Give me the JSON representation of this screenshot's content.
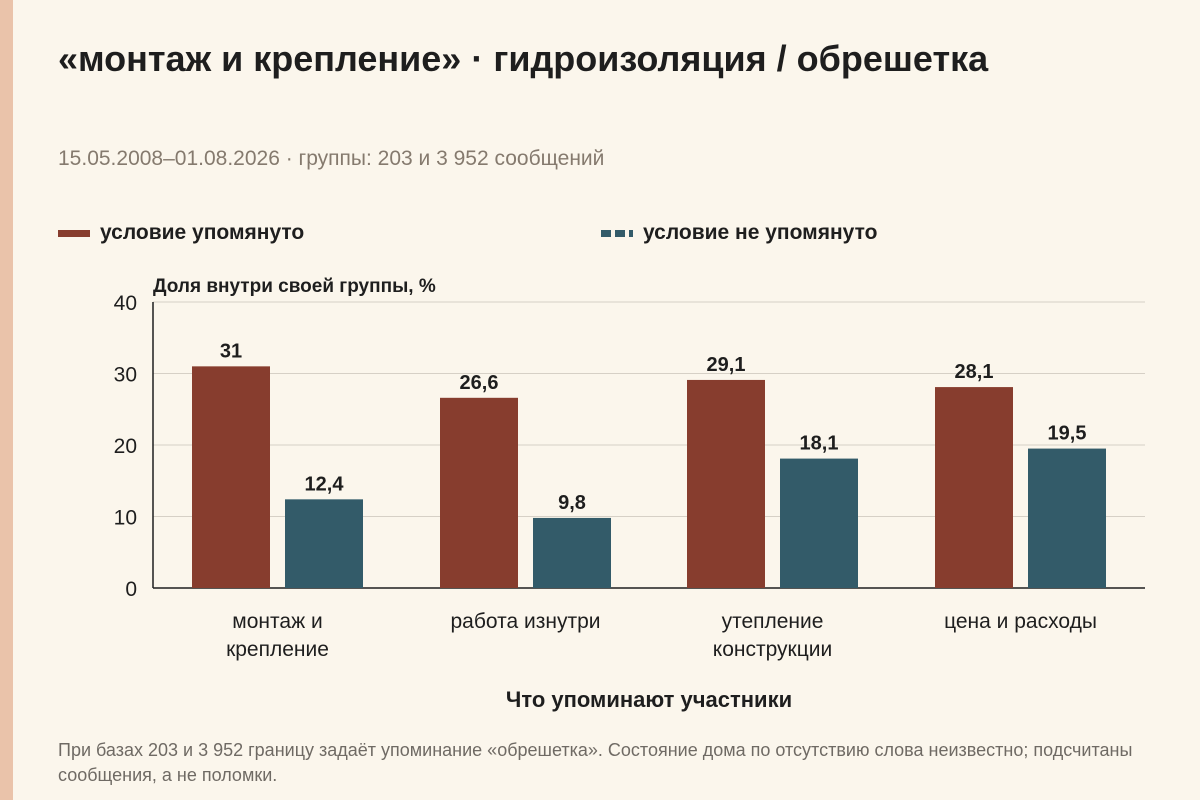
{
  "title": "«монтаж и крепление» · гидроизоляция / обрешетка",
  "subtitle": "15.05.2008–01.08.2026 · группы: 203 и 3 952 сообщений",
  "footnote": "При базах 203 и 3 952 границу задаёт упоминание «обрешетка». Состояние дома по отсутствию слова неизвестно; подсчитаны сообщения, а не поломки.",
  "colors": {
    "mentioned": "#873D2E",
    "not_mentioned": "#335B69",
    "grid": "#D6D0C6",
    "axis": "#1E1E1E",
    "accent": "#EAC3AA"
  },
  "chart_data": {
    "type": "bar",
    "title": "«монтаж и крепление» · гидроизоляция / обрешетка",
    "subtitle": "15.05.2008–01.08.2026 · группы: 203 и 3 952 сообщений",
    "xlabel": "Что упоминают участники",
    "ylabel": "Доля внутри своей группы, %",
    "ylim": [
      0,
      40
    ],
    "yticks": [
      0,
      10,
      20,
      30,
      40
    ],
    "categories": [
      [
        "монтаж и",
        "крепление"
      ],
      [
        "работа изнутри"
      ],
      [
        "утепление",
        "конструкции"
      ],
      [
        "цена и расходы"
      ]
    ],
    "series": [
      {
        "name": "условие упомянуто",
        "values": [
          31,
          26.6,
          29.1,
          28.1
        ],
        "labels": [
          "31",
          "26,6",
          "29,1",
          "28,1"
        ]
      },
      {
        "name": "условие не упомянуто",
        "values": [
          12.4,
          9.8,
          18.1,
          19.5
        ],
        "labels": [
          "12,4",
          "9,8",
          "18,1",
          "19,5"
        ]
      }
    ],
    "grid": true,
    "legend": "top-left"
  }
}
